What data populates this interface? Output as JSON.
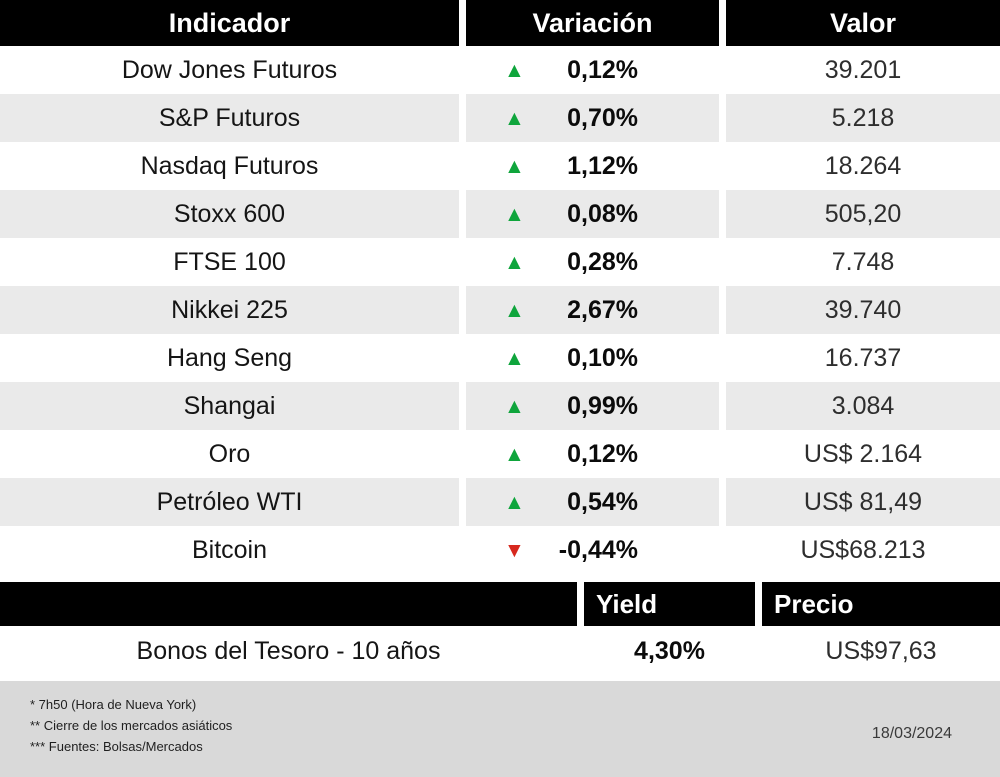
{
  "accent_colors": {
    "up_green": "#0fa53c",
    "down_red": "#d7281e",
    "header_bg": "#000000",
    "row_alt_bg": "#eaeaea",
    "footer_bg": "#d9d9d9"
  },
  "table1": {
    "headers": [
      "Indicador",
      "Variación",
      "Valor"
    ],
    "rows": [
      {
        "indicator": "Dow Jones Futuros",
        "direction": "up",
        "variation": "0,12%",
        "value": "39.201"
      },
      {
        "indicator": "S&P Futuros",
        "direction": "up",
        "variation": "0,70%",
        "value": "5.218"
      },
      {
        "indicator": "Nasdaq Futuros",
        "direction": "up",
        "variation": "1,12%",
        "value": "18.264"
      },
      {
        "indicator": "Stoxx 600",
        "direction": "up",
        "variation": "0,08%",
        "value": "505,20"
      },
      {
        "indicator": "FTSE 100",
        "direction": "up",
        "variation": "0,28%",
        "value": "7.748"
      },
      {
        "indicator": "Nikkei 225",
        "direction": "up",
        "variation": "2,67%",
        "value": "39.740"
      },
      {
        "indicator": "Hang Seng",
        "direction": "up",
        "variation": "0,10%",
        "value": "16.737"
      },
      {
        "indicator": "Shangai",
        "direction": "up",
        "variation": "0,99%",
        "value": "3.084"
      },
      {
        "indicator": "Oro",
        "direction": "up",
        "variation": "0,12%",
        "value": "US$ 2.164"
      },
      {
        "indicator": "Petróleo WTI",
        "direction": "up",
        "variation": "0,54%",
        "value": "US$ 81,49"
      },
      {
        "indicator": "Bitcoin",
        "direction": "down",
        "variation": "-0,44%",
        "value": "US$68.213"
      }
    ]
  },
  "table2": {
    "headers": [
      "Yield",
      "Precio"
    ],
    "row": {
      "indicator": "Bonos del Tesoro - 10 años",
      "yield": "4,30%",
      "price": "US$97,63"
    }
  },
  "footnotes": [
    "* 7h50 (Hora de Nueva York)",
    "** Cierre de los mercados asiáticos",
    "*** Fuentes: Bolsas/Mercados"
  ],
  "date": "18/03/2024",
  "chart_data": [
    {
      "type": "table",
      "columns": [
        "Indicador",
        "Variación",
        "Valor"
      ],
      "rows": [
        [
          "Dow Jones Futuros",
          "▲ 0,12%",
          "39.201"
        ],
        [
          "S&P Futuros",
          "▲ 0,70%",
          "5.218"
        ],
        [
          "Nasdaq Futuros",
          "▲ 1,12%",
          "18.264"
        ],
        [
          "Stoxx 600",
          "▲ 0,08%",
          "505,20"
        ],
        [
          "FTSE 100",
          "▲ 0,28%",
          "7.748"
        ],
        [
          "Nikkei 225",
          "▲ 2,67%",
          "39.740"
        ],
        [
          "Hang Seng",
          "▲ 0,10%",
          "16.737"
        ],
        [
          "Shangai",
          "▲ 0,99%",
          "3.084"
        ],
        [
          "Oro",
          "▲ 0,12%",
          "US$ 2.164"
        ],
        [
          "Petróleo WTI",
          "▲ 0,54%",
          "US$ 81,49"
        ],
        [
          "Bitcoin",
          "▼ -0,44%",
          "US$68.213"
        ]
      ]
    },
    {
      "type": "table",
      "columns": [
        "",
        "Yield",
        "Precio"
      ],
      "rows": [
        [
          "Bonos del Tesoro - 10 años",
          "4,30%",
          "US$97,63"
        ]
      ]
    }
  ]
}
